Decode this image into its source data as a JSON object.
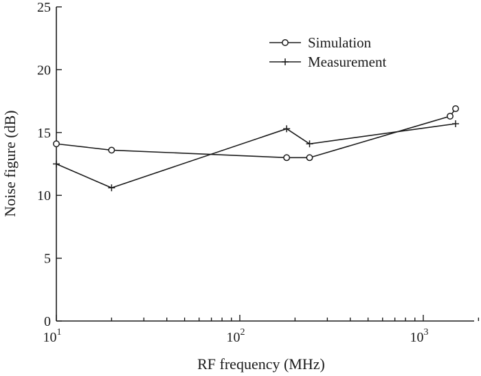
{
  "chart_data": {
    "type": "line",
    "title": "",
    "xlabel": "RF frequency (MHz)",
    "ylabel": "Noise figure (dB)",
    "xscale": "log",
    "xlim": [
      10,
      2000
    ],
    "ylim": [
      0,
      25
    ],
    "grid": false,
    "legend_position": "top-right",
    "x_ticks": [
      10,
      100,
      1000
    ],
    "x_tick_labels": [
      {
        "base": "10",
        "exp": "1"
      },
      {
        "base": "10",
        "exp": "2"
      },
      {
        "base": "10",
        "exp": "3"
      }
    ],
    "y_ticks": [
      0,
      5,
      10,
      15,
      20,
      25
    ],
    "y_tick_labels": [
      "0",
      "5",
      "10",
      "15",
      "20",
      "25"
    ],
    "series": [
      {
        "name": "Simulation",
        "marker": "circle",
        "color": "#1a1a1a",
        "x": [
          10,
          20,
          180,
          240,
          1400,
          1500
        ],
        "y": [
          14.1,
          13.6,
          13.0,
          13.0,
          16.3,
          16.9
        ]
      },
      {
        "name": "Measurement",
        "marker": "plus",
        "color": "#1a1a1a",
        "x": [
          10,
          20,
          180,
          240,
          1500
        ],
        "y": [
          12.5,
          10.6,
          15.3,
          14.1,
          15.7
        ]
      }
    ]
  }
}
